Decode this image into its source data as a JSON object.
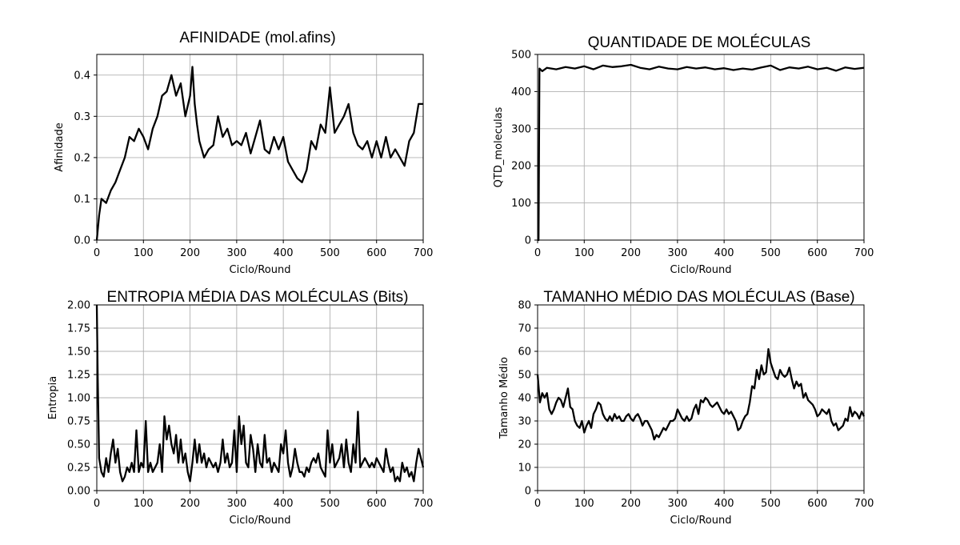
{
  "figure": {
    "panels": [
      {
        "title": "AFINIDADE (mol.afins)"
      },
      {
        "title": "QUANTIDADE DE MOLÉCULAS"
      },
      {
        "title": "ENTROPIA MÉDIA DAS MOLÉCULAS (Bits)"
      },
      {
        "title": "TAMANHO MÉDIO DAS MOLÉCULAS (Base)"
      }
    ]
  },
  "chart_data": [
    {
      "type": "line",
      "title": "AFINIDADE (mol.afins)",
      "xlabel": "Ciclo/Round",
      "ylabel": "Afinidade",
      "xlim": [
        0,
        700
      ],
      "ylim": [
        0,
        0.45
      ],
      "xticks": [
        "0",
        "100",
        "200",
        "300",
        "400",
        "500",
        "600",
        "700"
      ],
      "yticks": [
        "0.0",
        "0.1",
        "0.2",
        "0.3",
        "0.4"
      ],
      "ytick_values": [
        0,
        0.1,
        0.2,
        0.3,
        0.4
      ],
      "grid": true,
      "series": [
        {
          "color": "#000000",
          "x": [
            0,
            5,
            10,
            20,
            30,
            40,
            50,
            60,
            70,
            80,
            90,
            100,
            110,
            120,
            130,
            140,
            150,
            160,
            170,
            180,
            190,
            200,
            205,
            210,
            215,
            220,
            230,
            240,
            250,
            260,
            270,
            280,
            290,
            300,
            310,
            320,
            330,
            340,
            350,
            360,
            370,
            380,
            390,
            400,
            410,
            420,
            430,
            440,
            450,
            460,
            470,
            480,
            490,
            500,
            510,
            520,
            530,
            540,
            550,
            560,
            570,
            580,
            590,
            600,
            610,
            620,
            630,
            640,
            650,
            660,
            670,
            680,
            690,
            700
          ],
          "y": [
            0.0,
            0.06,
            0.1,
            0.09,
            0.12,
            0.14,
            0.17,
            0.2,
            0.25,
            0.24,
            0.27,
            0.25,
            0.22,
            0.27,
            0.3,
            0.35,
            0.36,
            0.4,
            0.35,
            0.38,
            0.3,
            0.35,
            0.42,
            0.33,
            0.28,
            0.24,
            0.2,
            0.22,
            0.23,
            0.3,
            0.25,
            0.27,
            0.23,
            0.24,
            0.23,
            0.26,
            0.21,
            0.25,
            0.29,
            0.22,
            0.21,
            0.25,
            0.22,
            0.25,
            0.19,
            0.17,
            0.15,
            0.14,
            0.17,
            0.24,
            0.22,
            0.28,
            0.26,
            0.37,
            0.26,
            0.28,
            0.3,
            0.33,
            0.26,
            0.23,
            0.22,
            0.24,
            0.2,
            0.24,
            0.2,
            0.25,
            0.2,
            0.22,
            0.2,
            0.18,
            0.24,
            0.26,
            0.33,
            0.33
          ]
        }
      ]
    },
    {
      "type": "line",
      "title": "QUANTIDADE DE MOLÉCULAS",
      "xlabel": "Ciclo/Round",
      "ylabel": "QTD_moleculas",
      "xlim": [
        0,
        700
      ],
      "ylim": [
        0,
        500
      ],
      "xticks": [
        "0",
        "100",
        "200",
        "300",
        "400",
        "500",
        "600",
        "700"
      ],
      "yticks": [
        "0",
        "100",
        "200",
        "300",
        "400",
        "500"
      ],
      "ytick_values": [
        0,
        100,
        200,
        300,
        400,
        500
      ],
      "grid": true,
      "series": [
        {
          "color": "#000000",
          "x": [
            0,
            2,
            4,
            10,
            20,
            40,
            60,
            80,
            100,
            120,
            140,
            160,
            180,
            200,
            220,
            240,
            260,
            280,
            300,
            320,
            340,
            360,
            380,
            400,
            420,
            440,
            460,
            480,
            500,
            520,
            540,
            560,
            580,
            600,
            620,
            640,
            660,
            680,
            700
          ],
          "y": [
            0,
            0,
            462,
            455,
            464,
            460,
            466,
            462,
            468,
            460,
            470,
            466,
            468,
            472,
            464,
            460,
            467,
            462,
            460,
            466,
            462,
            465,
            460,
            463,
            458,
            462,
            459,
            465,
            470,
            458,
            465,
            462,
            467,
            460,
            464,
            456,
            465,
            461,
            464
          ]
        }
      ]
    },
    {
      "type": "line",
      "title": "ENTROPIA MÉDIA DAS MOLÉCULAS (Bits)",
      "xlabel": "Ciclo/Round",
      "ylabel": "Entropia",
      "xlim": [
        0,
        700
      ],
      "ylim": [
        0,
        2.0
      ],
      "xticks": [
        "0",
        "100",
        "200",
        "300",
        "400",
        "500",
        "600",
        "700"
      ],
      "yticks": [
        "0.00",
        "0.25",
        "0.50",
        "0.75",
        "1.00",
        "1.25",
        "1.50",
        "1.75",
        "2.00"
      ],
      "ytick_values": [
        0,
        0.25,
        0.5,
        0.75,
        1.0,
        1.25,
        1.5,
        1.75,
        2.0
      ],
      "grid": true,
      "series": [
        {
          "color": "#000000",
          "x": [
            0,
            2,
            5,
            10,
            15,
            20,
            25,
            30,
            35,
            40,
            45,
            50,
            55,
            60,
            65,
            70,
            75,
            80,
            85,
            90,
            95,
            100,
            105,
            110,
            115,
            120,
            125,
            130,
            135,
            140,
            145,
            150,
            155,
            160,
            165,
            170,
            175,
            180,
            185,
            190,
            195,
            200,
            205,
            210,
            215,
            220,
            225,
            230,
            235,
            240,
            245,
            250,
            255,
            260,
            265,
            270,
            275,
            280,
            285,
            290,
            295,
            300,
            305,
            310,
            315,
            320,
            325,
            330,
            335,
            340,
            345,
            350,
            355,
            360,
            365,
            370,
            375,
            380,
            385,
            390,
            395,
            400,
            405,
            410,
            415,
            420,
            425,
            430,
            435,
            440,
            445,
            450,
            455,
            460,
            465,
            470,
            475,
            480,
            485,
            490,
            495,
            500,
            505,
            510,
            515,
            520,
            525,
            530,
            535,
            540,
            545,
            550,
            555,
            560,
            565,
            570,
            575,
            580,
            585,
            590,
            595,
            600,
            605,
            610,
            615,
            620,
            625,
            630,
            635,
            640,
            645,
            650,
            655,
            660,
            665,
            670,
            675,
            680,
            685,
            690,
            695,
            700
          ],
          "y": [
            2.0,
            1.2,
            0.35,
            0.2,
            0.15,
            0.35,
            0.2,
            0.4,
            0.55,
            0.3,
            0.45,
            0.2,
            0.1,
            0.15,
            0.25,
            0.2,
            0.3,
            0.2,
            0.65,
            0.2,
            0.3,
            0.25,
            0.75,
            0.2,
            0.3,
            0.2,
            0.25,
            0.3,
            0.5,
            0.2,
            0.8,
            0.55,
            0.7,
            0.5,
            0.4,
            0.6,
            0.3,
            0.55,
            0.3,
            0.4,
            0.2,
            0.1,
            0.3,
            0.55,
            0.3,
            0.5,
            0.3,
            0.4,
            0.25,
            0.35,
            0.3,
            0.25,
            0.3,
            0.2,
            0.3,
            0.55,
            0.3,
            0.4,
            0.25,
            0.3,
            0.65,
            0.2,
            0.8,
            0.5,
            0.7,
            0.3,
            0.25,
            0.6,
            0.45,
            0.2,
            0.5,
            0.3,
            0.25,
            0.6,
            0.3,
            0.35,
            0.2,
            0.3,
            0.25,
            0.2,
            0.5,
            0.4,
            0.65,
            0.3,
            0.15,
            0.25,
            0.45,
            0.3,
            0.2,
            0.2,
            0.15,
            0.25,
            0.2,
            0.3,
            0.35,
            0.3,
            0.4,
            0.25,
            0.2,
            0.15,
            0.65,
            0.3,
            0.5,
            0.25,
            0.3,
            0.35,
            0.5,
            0.25,
            0.55,
            0.3,
            0.2,
            0.5,
            0.3,
            0.85,
            0.25,
            0.3,
            0.35,
            0.3,
            0.25,
            0.3,
            0.25,
            0.35,
            0.3,
            0.25,
            0.2,
            0.45,
            0.3,
            0.2,
            0.25,
            0.1,
            0.15,
            0.1,
            0.3,
            0.2,
            0.25,
            0.15,
            0.2,
            0.1,
            0.3,
            0.45,
            0.35,
            0.25
          ]
        }
      ]
    },
    {
      "type": "line",
      "title": "TAMANHO MÉDIO DAS MOLÉCULAS (Base)",
      "xlabel": "Ciclo/Round",
      "ylabel": "Tamanho Médio",
      "xlim": [
        0,
        700
      ],
      "ylim": [
        0,
        80
      ],
      "xticks": [
        "0",
        "100",
        "200",
        "300",
        "400",
        "500",
        "600",
        "700"
      ],
      "yticks": [
        "0",
        "10",
        "20",
        "30",
        "40",
        "50",
        "60",
        "70",
        "80"
      ],
      "ytick_values": [
        0,
        10,
        20,
        30,
        40,
        50,
        60,
        70,
        80
      ],
      "grid": true,
      "series": [
        {
          "color": "#000000",
          "x": [
            0,
            5,
            10,
            15,
            20,
            25,
            30,
            35,
            40,
            45,
            50,
            55,
            60,
            65,
            70,
            75,
            80,
            85,
            90,
            95,
            100,
            105,
            110,
            115,
            120,
            125,
            130,
            135,
            140,
            145,
            150,
            155,
            160,
            165,
            170,
            175,
            180,
            185,
            190,
            195,
            200,
            205,
            210,
            215,
            220,
            225,
            230,
            235,
            240,
            245,
            250,
            255,
            260,
            265,
            270,
            275,
            280,
            285,
            290,
            295,
            300,
            305,
            310,
            315,
            320,
            325,
            330,
            335,
            340,
            345,
            350,
            355,
            360,
            365,
            370,
            375,
            380,
            385,
            390,
            395,
            400,
            405,
            410,
            415,
            420,
            425,
            430,
            435,
            440,
            445,
            450,
            455,
            460,
            465,
            470,
            475,
            480,
            485,
            490,
            495,
            500,
            505,
            510,
            515,
            520,
            525,
            530,
            535,
            540,
            545,
            550,
            555,
            560,
            565,
            570,
            575,
            580,
            585,
            590,
            595,
            600,
            605,
            610,
            615,
            620,
            625,
            630,
            635,
            640,
            645,
            650,
            655,
            660,
            665,
            670,
            675,
            680,
            685,
            690,
            695,
            700
          ],
          "y": [
            50,
            38,
            42,
            40,
            42,
            35,
            33,
            35,
            38,
            40,
            39,
            36,
            40,
            44,
            36,
            35,
            30,
            28,
            27,
            30,
            25,
            28,
            30,
            27,
            33,
            35,
            38,
            37,
            33,
            31,
            30,
            32,
            30,
            33,
            31,
            32,
            30,
            30,
            32,
            33,
            31,
            30,
            32,
            33,
            31,
            28,
            30,
            30,
            28,
            26,
            22,
            24,
            23,
            25,
            27,
            26,
            28,
            30,
            30,
            31,
            35,
            33,
            31,
            30,
            32,
            30,
            31,
            35,
            37,
            33,
            39,
            38,
            40,
            39,
            37,
            36,
            37,
            38,
            36,
            34,
            33,
            35,
            33,
            34,
            32,
            30,
            26,
            27,
            30,
            32,
            33,
            38,
            45,
            44,
            52,
            48,
            54,
            50,
            51,
            61,
            55,
            52,
            49,
            48,
            52,
            50,
            49,
            50,
            53,
            48,
            44,
            47,
            45,
            46,
            40,
            42,
            39,
            38,
            37,
            35,
            32,
            33,
            35,
            34,
            33,
            35,
            30,
            28,
            29,
            26,
            27,
            28,
            31,
            30,
            36,
            32,
            34,
            33,
            31,
            34,
            32
          ]
        }
      ]
    }
  ]
}
